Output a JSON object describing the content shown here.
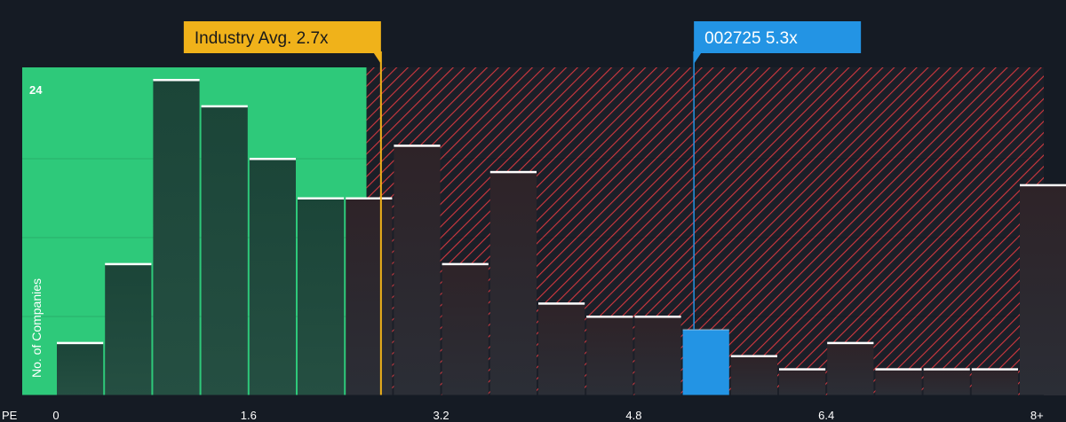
{
  "chart_data": {
    "type": "bar",
    "x_axis_name": "PE",
    "ylabel": "No. of Companies",
    "ymax_label": "24",
    "ylim": [
      0,
      24
    ],
    "xlim": [
      0,
      8.3
    ],
    "bin_width": 0.4,
    "x_ticks": [
      {
        "value": 0,
        "label": "0"
      },
      {
        "value": 1.6,
        "label": "1.6"
      },
      {
        "value": 3.2,
        "label": "3.2"
      },
      {
        "value": 4.8,
        "label": "4.8"
      },
      {
        "value": 6.4,
        "label": "6.4"
      },
      {
        "value": 8.15,
        "label": "8+"
      }
    ],
    "bins": [
      {
        "start": 0.0,
        "value": 4
      },
      {
        "start": 0.4,
        "value": 10
      },
      {
        "start": 0.8,
        "value": 24
      },
      {
        "start": 1.2,
        "value": 22
      },
      {
        "start": 1.6,
        "value": 18
      },
      {
        "start": 2.0,
        "value": 15
      },
      {
        "start": 2.4,
        "value": 15
      },
      {
        "start": 2.8,
        "value": 19
      },
      {
        "start": 3.2,
        "value": 10
      },
      {
        "start": 3.6,
        "value": 17
      },
      {
        "start": 4.0,
        "value": 7
      },
      {
        "start": 4.4,
        "value": 6
      },
      {
        "start": 4.8,
        "value": 6
      },
      {
        "start": 5.2,
        "value": 5,
        "highlight": true
      },
      {
        "start": 5.6,
        "value": 3
      },
      {
        "start": 6.0,
        "value": 2
      },
      {
        "start": 6.4,
        "value": 4
      },
      {
        "start": 6.8,
        "value": 2
      },
      {
        "start": 7.2,
        "value": 2
      },
      {
        "start": 7.6,
        "value": 2
      },
      {
        "start": 8.0,
        "value": 16
      }
    ],
    "fair_zone_end": 2.58,
    "industry_avg": {
      "value": 2.7,
      "label": "Industry Avg. 2.7x"
    },
    "company": {
      "value": 5.3,
      "label": "002725 5.3x"
    },
    "colors": {
      "background": "#151b24",
      "fair_zone": "#2ec97a",
      "overvalued_hatch": "#d2383f",
      "bar_fair": "#1f4a3d",
      "bar_over": "#2a2a33",
      "bar_cap": "#ffffff",
      "industry_line": "#f0b21a",
      "company": "#2394e4",
      "grid": "#2a3340"
    }
  }
}
